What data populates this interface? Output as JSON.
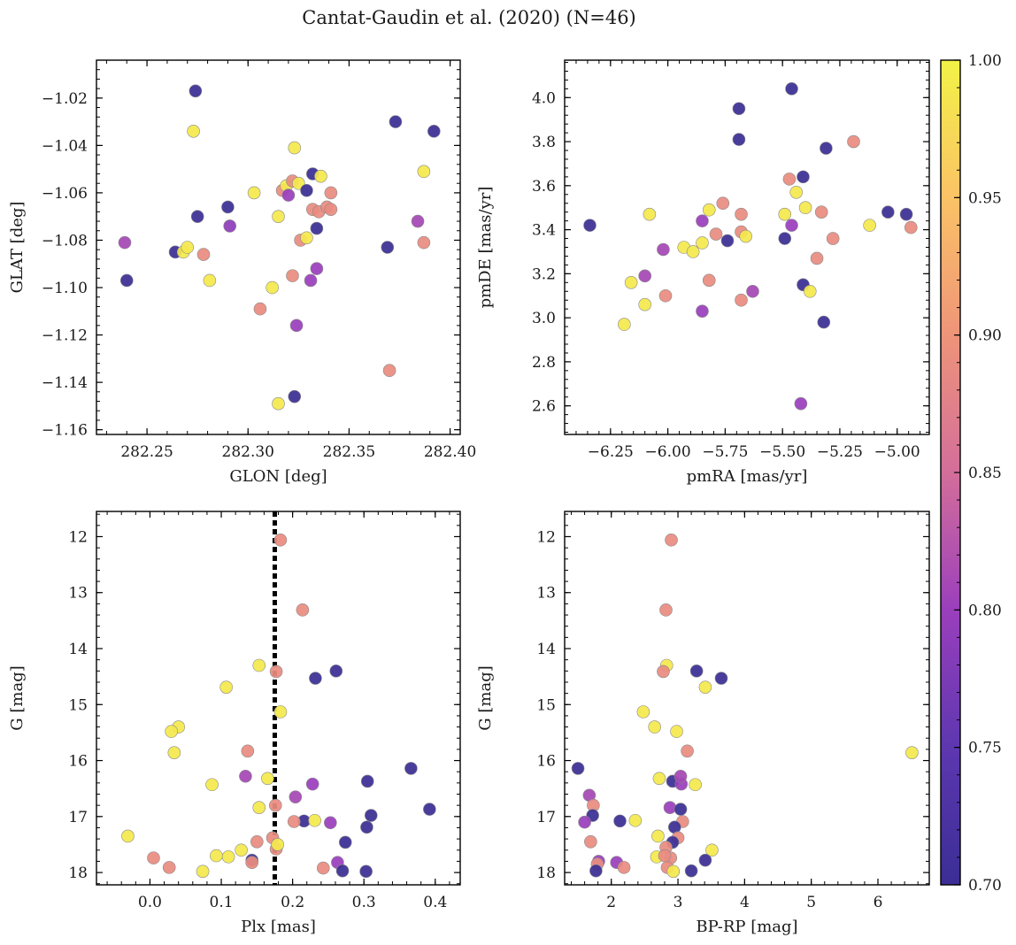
{
  "figure": {
    "title": "Cantat-Gaudin et al. (2020) (N=46)"
  },
  "colorbar": {
    "colormap": "plasma (truncated)",
    "range": [
      0.7,
      1.0
    ],
    "ticks": [
      "0.70",
      "0.75",
      "0.80",
      "0.85",
      "0.90",
      "0.95",
      "1.00"
    ],
    "stops": [
      "#3b2e95",
      "#5d37b0",
      "#9a3fbc",
      "#d36e9a",
      "#ee9479",
      "#fbc266",
      "#f2f247"
    ]
  },
  "colors": {
    "guide_line": "#000000",
    "marker_edge": "#8a8a8a"
  },
  "chart_data": [
    {
      "type": "scatter",
      "xlabel": "GLON [deg]",
      "ylabel": "GLAT [deg]",
      "xlim": [
        282.225,
        282.405
      ],
      "ylim": [
        -1.162,
        -1.004
      ],
      "xticks": [
        282.25,
        282.3,
        282.35,
        282.4
      ],
      "xticklabels": [
        "282.25",
        "282.30",
        "282.35",
        "282.40"
      ],
      "yticks": [
        -1.16,
        -1.14,
        -1.12,
        -1.1,
        -1.08,
        -1.06,
        -1.04,
        -1.02
      ],
      "yticklabels": [
        "−1.16",
        "−1.14",
        "−1.12",
        "−1.10",
        "−1.08",
        "−1.06",
        "−1.04",
        "−1.02"
      ],
      "points": [
        [
          282.274,
          -1.017,
          0.7
        ],
        [
          282.273,
          -1.034,
          0.99
        ],
        [
          282.239,
          -1.081,
          0.81
        ],
        [
          282.24,
          -1.097,
          0.7
        ],
        [
          282.264,
          -1.085,
          0.7
        ],
        [
          282.268,
          -1.085,
          0.99
        ],
        [
          282.27,
          -1.083,
          0.99
        ],
        [
          282.275,
          -1.07,
          0.7
        ],
        [
          282.278,
          -1.086,
          0.89
        ],
        [
          282.281,
          -1.097,
          0.99
        ],
        [
          282.29,
          -1.066,
          0.7
        ],
        [
          282.291,
          -1.074,
          0.79
        ],
        [
          282.303,
          -1.06,
          0.99
        ],
        [
          282.306,
          -1.109,
          0.89
        ],
        [
          282.312,
          -1.1,
          0.99
        ],
        [
          282.315,
          -1.07,
          0.99
        ],
        [
          282.317,
          -1.059,
          0.89
        ],
        [
          282.319,
          -1.057,
          0.99
        ],
        [
          282.32,
          -1.061,
          0.8
        ],
        [
          282.322,
          -1.095,
          0.89
        ],
        [
          282.323,
          -1.041,
          0.99
        ],
        [
          282.322,
          -1.055,
          0.89
        ],
        [
          282.325,
          -1.056,
          0.99
        ],
        [
          282.324,
          -1.116,
          0.8
        ],
        [
          282.323,
          -1.146,
          0.7
        ],
        [
          282.315,
          -1.149,
          0.99
        ],
        [
          282.326,
          -1.08,
          0.89
        ],
        [
          282.329,
          -1.059,
          0.7
        ],
        [
          282.329,
          -1.079,
          0.99
        ],
        [
          282.331,
          -1.097,
          0.8
        ],
        [
          282.332,
          -1.052,
          0.7
        ],
        [
          282.332,
          -1.067,
          0.89
        ],
        [
          282.334,
          -1.075,
          0.7
        ],
        [
          282.334,
          -1.092,
          0.8
        ],
        [
          282.335,
          -1.068,
          0.89
        ],
        [
          282.336,
          -1.053,
          0.99
        ],
        [
          282.339,
          -1.066,
          0.89
        ],
        [
          282.341,
          -1.06,
          0.89
        ],
        [
          282.341,
          -1.067,
          0.89
        ],
        [
          282.369,
          -1.083,
          0.7
        ],
        [
          282.37,
          -1.135,
          0.89
        ],
        [
          282.373,
          -1.03,
          0.7
        ],
        [
          282.384,
          -1.072,
          0.81
        ],
        [
          282.387,
          -1.051,
          0.99
        ],
        [
          282.387,
          -1.081,
          0.89
        ],
        [
          282.392,
          -1.034,
          0.7
        ]
      ]
    },
    {
      "type": "scatter",
      "xlabel": "pmRA [mas/yr]",
      "ylabel": "pmDE [mas/yr]",
      "xlim": [
        -6.45,
        -4.86
      ],
      "ylim": [
        2.47,
        4.17
      ],
      "xticks": [
        -6.25,
        -6.0,
        -5.75,
        -5.5,
        -5.25,
        -5.0
      ],
      "xticklabels": [
        "−6.25",
        "−6.00",
        "−5.75",
        "−5.50",
        "−5.25",
        "−5.00"
      ],
      "yticks": [
        2.6,
        2.8,
        3.0,
        3.2,
        3.4,
        3.6,
        3.8,
        4.0
      ],
      "yticklabels": [
        "2.6",
        "2.8",
        "3.0",
        "3.2",
        "3.4",
        "3.6",
        "3.8",
        "4.0"
      ],
      "points": [
        [
          -6.34,
          3.42,
          0.7
        ],
        [
          -6.19,
          2.97,
          0.99
        ],
        [
          -6.16,
          3.16,
          0.99
        ],
        [
          -6.1,
          3.06,
          0.99
        ],
        [
          -6.08,
          3.47,
          0.99
        ],
        [
          -6.1,
          3.19,
          0.81
        ],
        [
          -6.02,
          3.31,
          0.81
        ],
        [
          -6.01,
          3.1,
          0.89
        ],
        [
          -5.93,
          3.32,
          0.99
        ],
        [
          -5.89,
          3.3,
          0.99
        ],
        [
          -5.85,
          3.44,
          0.8
        ],
        [
          -5.85,
          3.34,
          0.99
        ],
        [
          -5.85,
          3.03,
          0.8
        ],
        [
          -5.82,
          3.49,
          0.99
        ],
        [
          -5.82,
          3.17,
          0.89
        ],
        [
          -5.79,
          3.38,
          0.89
        ],
        [
          -5.76,
          3.52,
          0.89
        ],
        [
          -5.74,
          3.35,
          0.7
        ],
        [
          -5.69,
          3.95,
          0.7
        ],
        [
          -5.69,
          3.81,
          0.7
        ],
        [
          -5.68,
          3.47,
          0.89
        ],
        [
          -5.68,
          3.39,
          0.89
        ],
        [
          -5.68,
          3.08,
          0.89
        ],
        [
          -5.66,
          3.37,
          0.99
        ],
        [
          -5.63,
          3.12,
          0.81
        ],
        [
          -5.49,
          3.36,
          0.7
        ],
        [
          -5.49,
          3.47,
          0.99
        ],
        [
          -5.47,
          3.63,
          0.89
        ],
        [
          -5.46,
          4.04,
          0.7
        ],
        [
          -5.46,
          3.42,
          0.8
        ],
        [
          -5.44,
          3.57,
          0.99
        ],
        [
          -5.41,
          3.64,
          0.7
        ],
        [
          -5.41,
          3.15,
          0.7
        ],
        [
          -5.4,
          3.5,
          0.99
        ],
        [
          -5.42,
          2.61,
          0.8
        ],
        [
          -5.38,
          3.12,
          0.99
        ],
        [
          -5.35,
          3.27,
          0.89
        ],
        [
          -5.33,
          3.48,
          0.89
        ],
        [
          -5.32,
          2.98,
          0.7
        ],
        [
          -5.31,
          3.77,
          0.7
        ],
        [
          -5.28,
          3.36,
          0.89
        ],
        [
          -5.19,
          3.8,
          0.89
        ],
        [
          -5.12,
          3.42,
          0.99
        ],
        [
          -5.04,
          3.48,
          0.7
        ],
        [
          -4.96,
          3.47,
          0.7
        ],
        [
          -4.94,
          3.41,
          0.89
        ]
      ]
    },
    {
      "type": "scatter",
      "xlabel": "Plx [mas]",
      "ylabel": "G [mag]",
      "xlim": [
        -0.075,
        0.435
      ],
      "ylim": [
        11.55,
        18.22
      ],
      "yinverted": true,
      "xticks": [
        0.0,
        0.1,
        0.2,
        0.3,
        0.4
      ],
      "xticklabels": [
        "0.0",
        "0.1",
        "0.2",
        "0.3",
        "0.4"
      ],
      "yticks": [
        12,
        13,
        14,
        15,
        16,
        17,
        18
      ],
      "yticklabels": [
        "12",
        "13",
        "14",
        "15",
        "16",
        "17",
        "18"
      ],
      "vline": 0.175,
      "points": [
        [
          0.183,
          12.06,
          0.89
        ],
        [
          0.214,
          13.31,
          0.89
        ],
        [
          0.153,
          14.3,
          0.99
        ],
        [
          0.177,
          14.41,
          0.89
        ],
        [
          0.232,
          14.53,
          0.7
        ],
        [
          0.261,
          14.4,
          0.7
        ],
        [
          0.107,
          14.69,
          0.99
        ],
        [
          0.183,
          15.13,
          0.99
        ],
        [
          0.04,
          15.4,
          0.99
        ],
        [
          0.03,
          15.48,
          0.99
        ],
        [
          0.034,
          15.86,
          0.99
        ],
        [
          0.137,
          15.83,
          0.89
        ],
        [
          0.366,
          16.14,
          0.7
        ],
        [
          0.134,
          16.28,
          0.81
        ],
        [
          0.165,
          16.32,
          0.99
        ],
        [
          0.305,
          16.37,
          0.7
        ],
        [
          0.228,
          16.42,
          0.8
        ],
        [
          0.087,
          16.43,
          0.99
        ],
        [
          0.392,
          16.87,
          0.7
        ],
        [
          0.153,
          16.84,
          0.99
        ],
        [
          0.176,
          16.8,
          0.89
        ],
        [
          0.204,
          16.65,
          0.81
        ],
        [
          0.31,
          16.98,
          0.7
        ],
        [
          0.216,
          17.08,
          0.7
        ],
        [
          0.202,
          17.09,
          0.89
        ],
        [
          0.231,
          17.07,
          0.99
        ],
        [
          0.253,
          17.11,
          0.8
        ],
        [
          0.304,
          17.19,
          0.7
        ],
        [
          -0.031,
          17.35,
          0.99
        ],
        [
          0.15,
          17.45,
          0.89
        ],
        [
          0.172,
          17.38,
          0.89
        ],
        [
          0.274,
          17.46,
          0.7
        ],
        [
          0.177,
          17.58,
          0.89
        ],
        [
          0.128,
          17.6,
          0.99
        ],
        [
          0.143,
          17.78,
          0.7
        ],
        [
          0.143,
          17.82,
          0.89
        ],
        [
          0.005,
          17.74,
          0.89
        ],
        [
          0.093,
          17.7,
          0.99
        ],
        [
          0.027,
          17.91,
          0.89
        ],
        [
          0.074,
          17.98,
          0.99
        ],
        [
          0.243,
          17.92,
          0.89
        ],
        [
          0.263,
          17.82,
          0.8
        ],
        [
          0.27,
          17.97,
          0.7
        ],
        [
          0.303,
          17.98,
          0.7
        ],
        [
          0.179,
          17.5,
          0.99
        ],
        [
          0.11,
          17.72,
          0.99
        ]
      ]
    },
    {
      "type": "scatter",
      "xlabel": "BP-RP [mag]",
      "ylabel": "G [mag]",
      "xlim": [
        1.3,
        6.77
      ],
      "ylim": [
        11.55,
        18.22
      ],
      "yinverted": true,
      "xticks": [
        2,
        3,
        4,
        5,
        6
      ],
      "xticklabels": [
        "2",
        "3",
        "4",
        "5",
        "6"
      ],
      "yticks": [
        12,
        13,
        14,
        15,
        16,
        17,
        18
      ],
      "yticklabels": [
        "12",
        "13",
        "14",
        "15",
        "16",
        "17",
        "18"
      ],
      "points": [
        [
          2.9,
          12.06,
          0.89
        ],
        [
          2.82,
          13.31,
          0.89
        ],
        [
          2.83,
          14.3,
          0.99
        ],
        [
          2.78,
          14.41,
          0.89
        ],
        [
          3.28,
          14.4,
          0.7
        ],
        [
          3.65,
          14.53,
          0.7
        ],
        [
          3.41,
          14.69,
          0.99
        ],
        [
          2.48,
          15.13,
          0.99
        ],
        [
          2.65,
          15.4,
          0.99
        ],
        [
          2.98,
          15.48,
          0.99
        ],
        [
          6.51,
          15.86,
          0.99
        ],
        [
          3.14,
          15.83,
          0.89
        ],
        [
          1.5,
          16.14,
          0.7
        ],
        [
          2.72,
          16.32,
          0.99
        ],
        [
          2.92,
          16.37,
          0.7
        ],
        [
          3.05,
          16.42,
          0.8
        ],
        [
          3.26,
          16.43,
          0.99
        ],
        [
          3.04,
          16.28,
          0.81
        ],
        [
          1.67,
          16.62,
          0.81
        ],
        [
          1.73,
          16.8,
          0.89
        ],
        [
          2.88,
          16.84,
          0.8
        ],
        [
          3.04,
          16.87,
          0.7
        ],
        [
          1.72,
          16.98,
          0.7
        ],
        [
          1.6,
          17.1,
          0.8
        ],
        [
          2.13,
          17.08,
          0.7
        ],
        [
          2.36,
          17.07,
          0.99
        ],
        [
          3.07,
          17.09,
          0.89
        ],
        [
          2.95,
          17.19,
          0.7
        ],
        [
          2.7,
          17.35,
          0.99
        ],
        [
          3.0,
          17.38,
          0.89
        ],
        [
          1.69,
          17.45,
          0.89
        ],
        [
          2.92,
          17.46,
          0.7
        ],
        [
          2.82,
          17.55,
          0.89
        ],
        [
          3.51,
          17.6,
          0.99
        ],
        [
          2.68,
          17.72,
          0.99
        ],
        [
          2.89,
          17.74,
          0.89
        ],
        [
          3.41,
          17.78,
          0.7
        ],
        [
          2.08,
          17.82,
          0.8
        ],
        [
          1.81,
          17.8,
          0.8
        ],
        [
          1.79,
          17.85,
          0.89
        ],
        [
          2.19,
          17.91,
          0.89
        ],
        [
          2.84,
          17.91,
          0.89
        ],
        [
          2.93,
          17.98,
          0.99
        ],
        [
          1.77,
          17.97,
          0.7
        ],
        [
          3.2,
          17.97,
          0.7
        ],
        [
          2.8,
          17.7,
          0.89
        ]
      ]
    }
  ]
}
